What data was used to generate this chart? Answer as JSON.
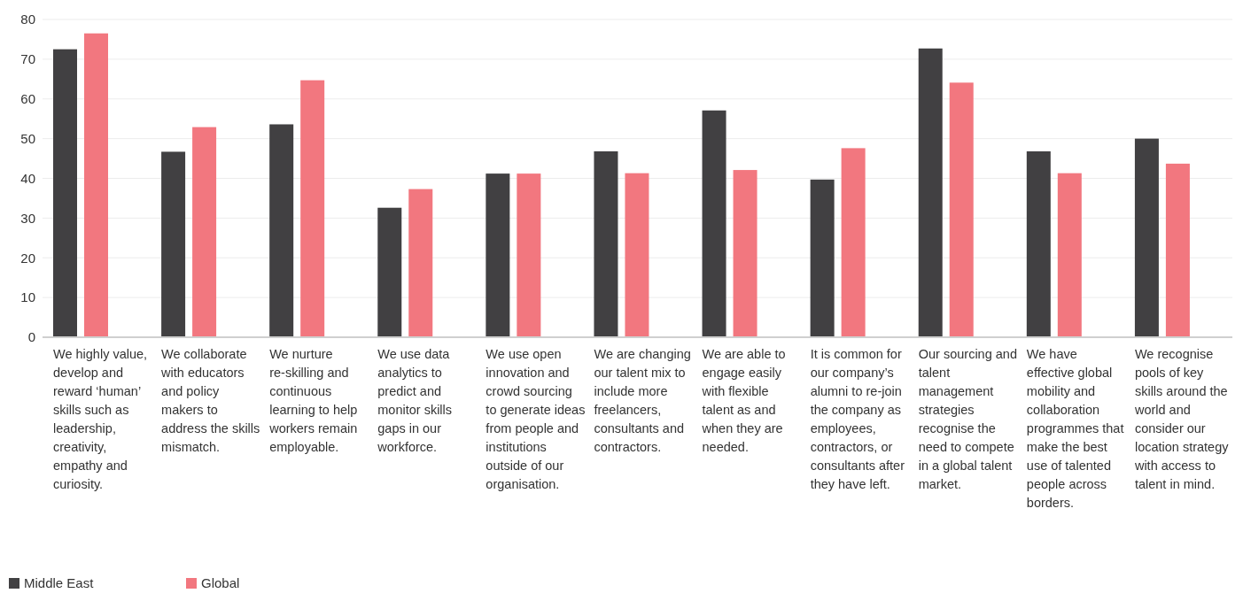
{
  "chart_data": {
    "type": "bar",
    "categories": [
      "We highly value, develop and reward ‘human’ skills such as leadership, creativity, empathy and curiosity.",
      "We collaborate with educators and policy makers to address the skills mismatch.",
      "We nurture re-skilling and continuous learning to help workers remain employable.",
      "We use data analytics to predict and monitor skills gaps in our workforce.",
      "We use open innovation and crowd sourcing to generate ideas from people and institutions outside of our organisation.",
      "We are changing our talent mix to include more freelancers, consultants and contractors.",
      "We are able to engage easily with flexible talent as and when they are needed.",
      "It is common for our company’s alumni to re-join the company as employees, contractors, or consultants after they have left.",
      "Our sourcing and talent management strategies recognise the need to compete in a global talent market.",
      "We have effective global mobility and collaboration programmes that make the best use of talented people across borders.",
      "We recognise pools of key skills around the world and consider our location strategy with access to talent in mind."
    ],
    "series": [
      {
        "name": "Middle East",
        "color": "#414042",
        "values": [
          72.5,
          46.7,
          53.6,
          32.6,
          41.2,
          46.8,
          57.1,
          39.7,
          72.7,
          46.8,
          50.0
        ]
      },
      {
        "name": "Global",
        "color": "#f2777f",
        "values": [
          76.5,
          52.9,
          64.7,
          37.3,
          41.2,
          41.3,
          42.1,
          47.6,
          64.1,
          41.3,
          43.7
        ]
      }
    ],
    "ylim": [
      0,
      80
    ],
    "yticks": [
      0,
      10,
      20,
      30,
      40,
      50,
      60,
      70,
      80
    ],
    "grid": "y",
    "legend": "bottom left"
  }
}
